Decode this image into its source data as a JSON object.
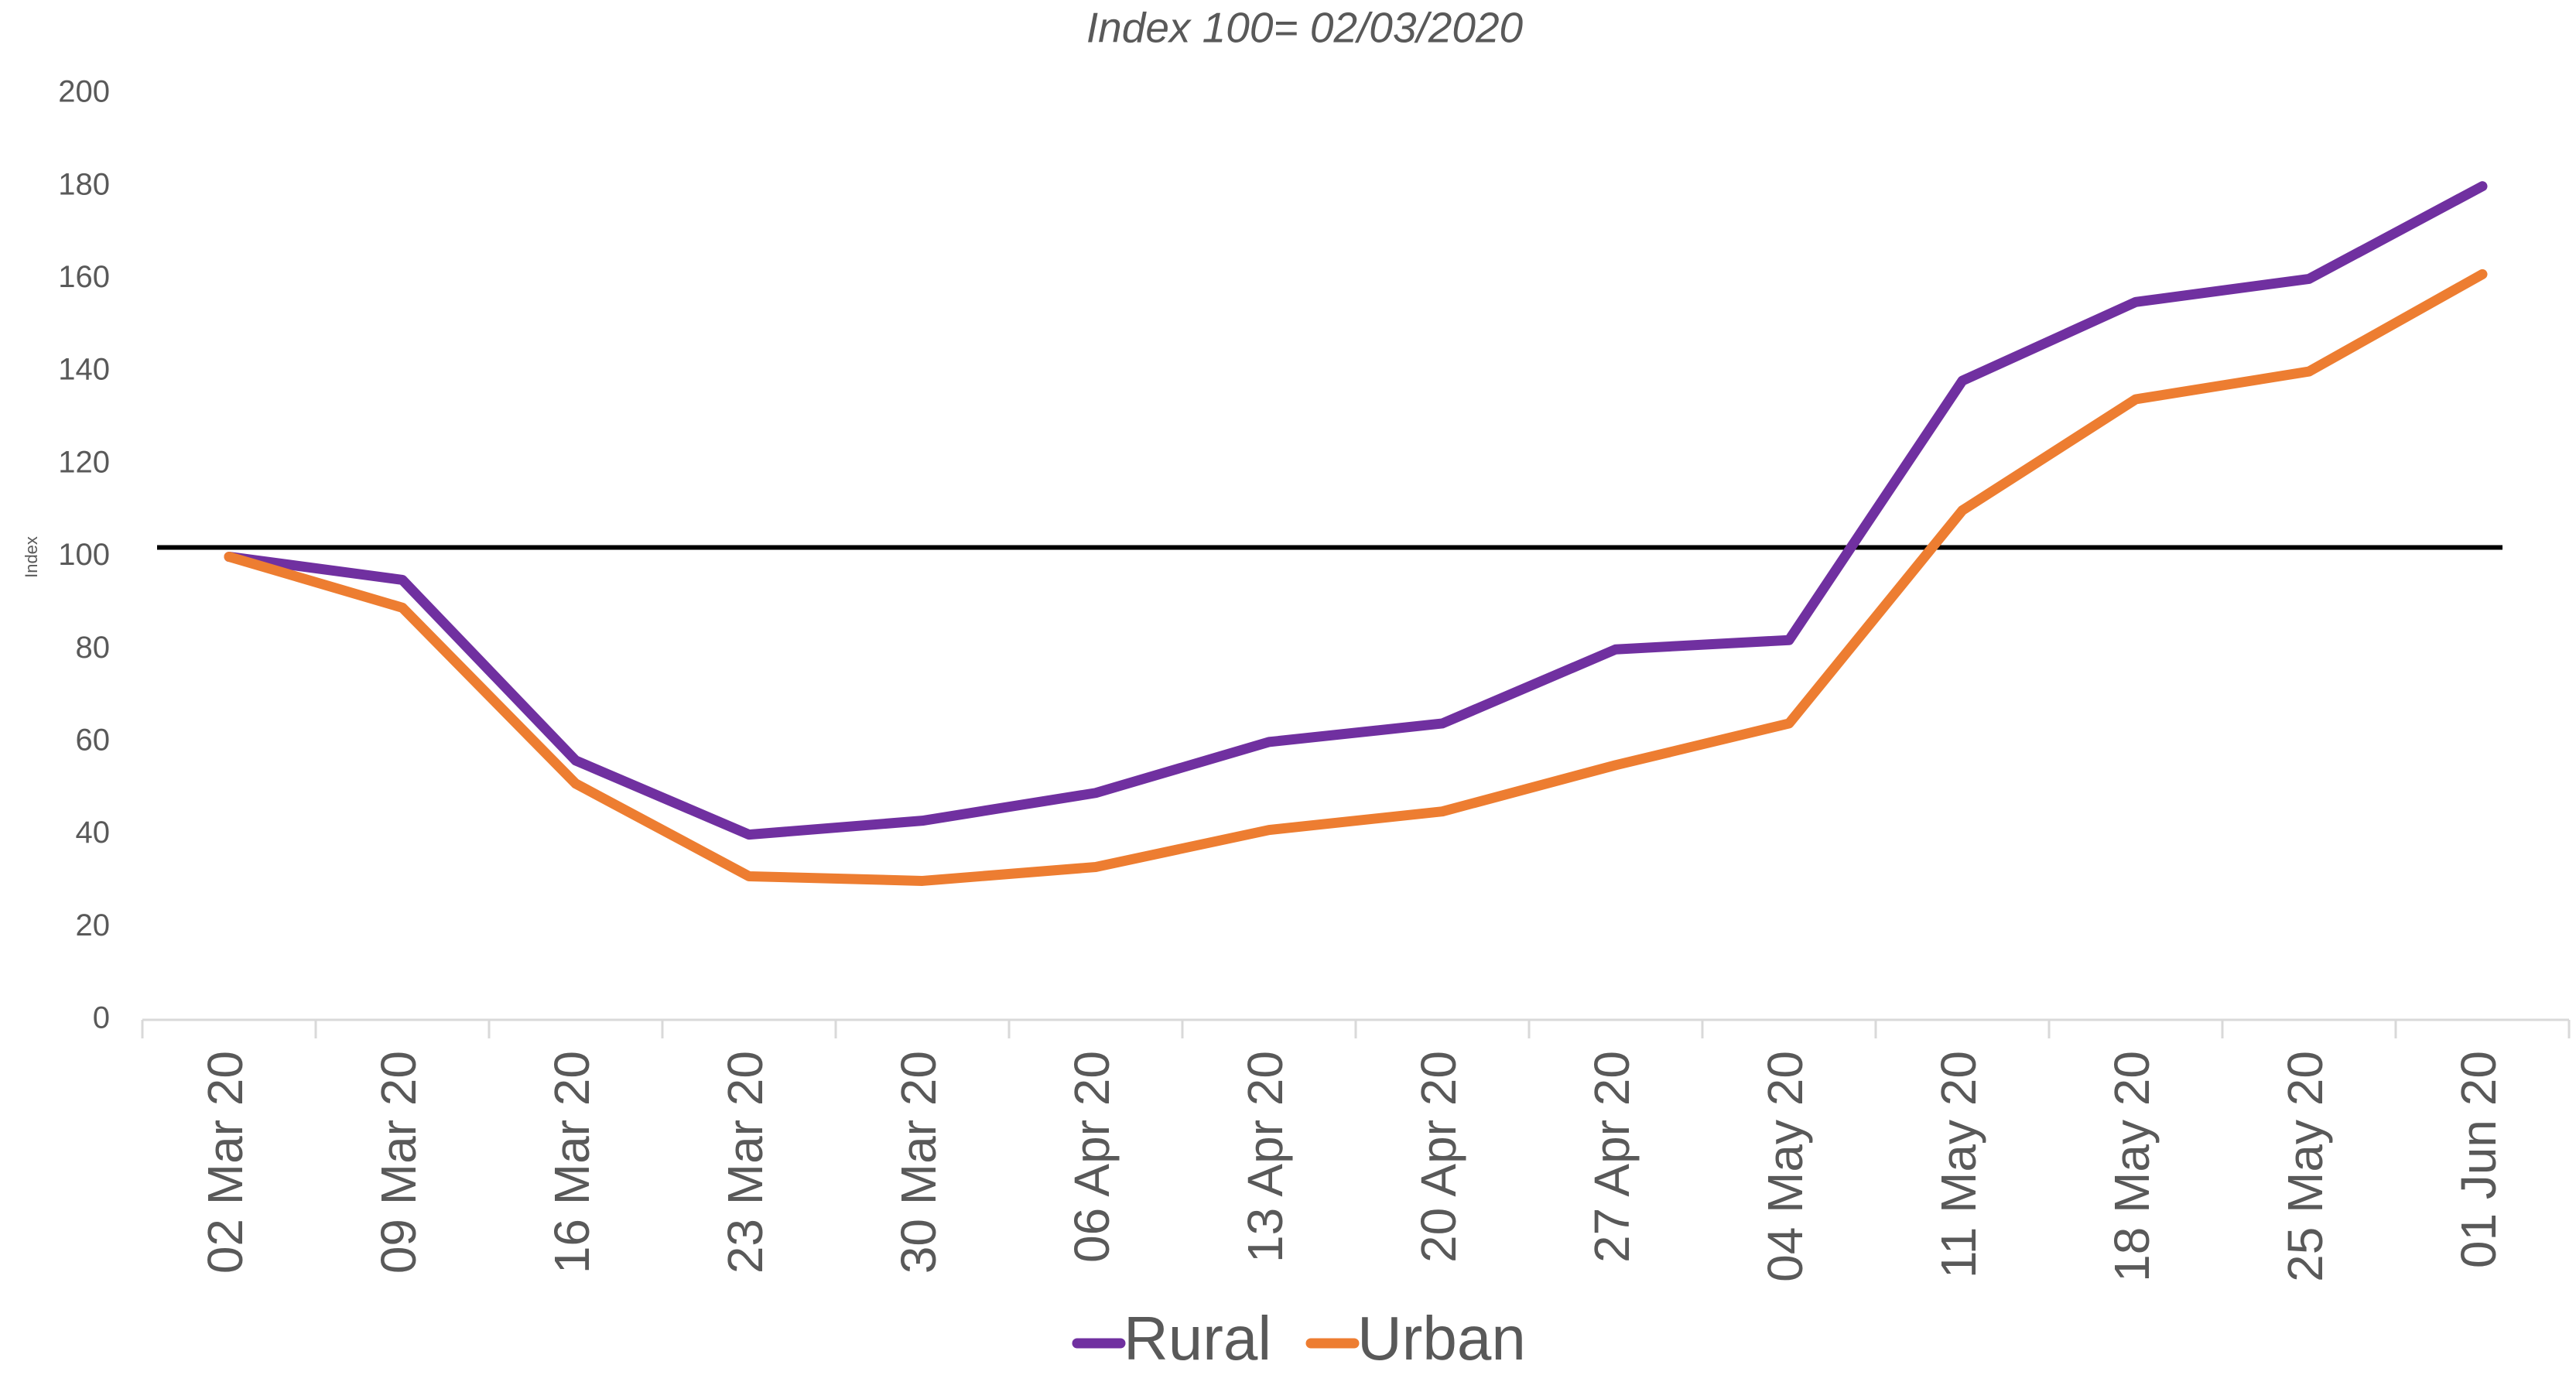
{
  "chart_data": {
    "type": "line",
    "title": "Index 100= 02/03/2020",
    "y_label": "Index",
    "categories": [
      "02 Mar 20",
      "09 Mar 20",
      "16 Mar 20",
      "23 Mar 20",
      "30 Mar 20",
      "06 Apr 20",
      "13 Apr 20",
      "20 Apr 20",
      "27 Apr 20",
      "04 May 20",
      "11 May 20",
      "18 May 20",
      "25 May 20",
      "01 Jun 20"
    ],
    "series": [
      {
        "name": "Rural",
        "color": "#7030a0",
        "values": [
          100,
          95,
          56,
          40,
          43,
          49,
          60,
          64,
          80,
          82,
          138,
          155,
          160,
          180
        ]
      },
      {
        "name": "Urban",
        "color": "#ed7d31",
        "values": [
          100,
          89,
          51,
          31,
          30,
          33,
          41,
          45,
          55,
          64,
          110,
          134,
          140,
          161
        ]
      }
    ],
    "reference_line": {
      "value": 102,
      "color": "#000000"
    },
    "ylim": [
      0,
      200
    ],
    "yticks": [
      0,
      20,
      40,
      60,
      80,
      100,
      120,
      140,
      160,
      180,
      200
    ],
    "legend": "bottom"
  }
}
